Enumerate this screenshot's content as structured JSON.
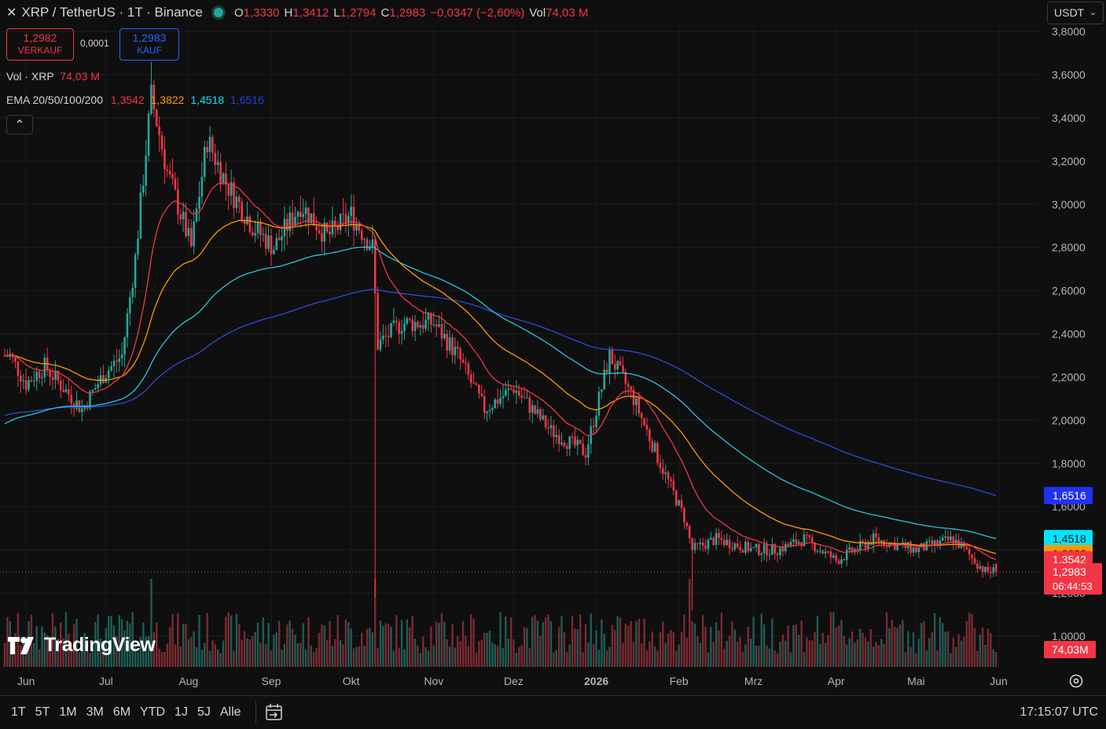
{
  "header": {
    "symbol": "XRP / TetherUS · 1T · Binance",
    "open_label": "O",
    "open": "1,3330",
    "high_label": "H",
    "high": "1,3412",
    "low_label": "L",
    "low": "1,2794",
    "close_label": "C",
    "close": "1,2983",
    "change": "−0,0347 (−2,60%)",
    "vol_label": "Vol",
    "vol": "74,03 M"
  },
  "trade": {
    "sell_price": "1,2982",
    "sell_label": "VERKAUF",
    "spread": "0,0001",
    "buy_price": "1,2983",
    "buy_label": "KAUF"
  },
  "indicators": {
    "vol_title": "Vol · XRP",
    "vol_value": "74,03 M",
    "ema_title": "EMA 20/50/100/200",
    "ema20": "1,3542",
    "ema50": "1,3822",
    "ema100": "1,4518",
    "ema200": "1,6516"
  },
  "currency": "USDT",
  "timeframes": [
    "1T",
    "5T",
    "1M",
    "3M",
    "6M",
    "YTD",
    "1J",
    "5J",
    "Alle"
  ],
  "clock": "17:15:07 UTC",
  "logo_text": "TradingView",
  "icons": [
    "close-icon",
    "status-dot-icon",
    "chevron-up-icon",
    "chevron-down-icon",
    "calendar-goto-icon",
    "settings-icon",
    "tradingview-logo-icon"
  ],
  "colors": {
    "up": "#26a69a",
    "down": "#f23645",
    "ema20": "#f23645",
    "ema50": "#ff9800",
    "ema100": "#26c6da",
    "ema200": "#2962ff",
    "background": "#0f0f0f"
  },
  "chart_data": {
    "type": "candlestick",
    "y_axis_ticks": [
      "1,0000",
      "1,2000",
      "1,4000",
      "1,6000",
      "1,8000",
      "2,0000",
      "2,2000",
      "2,4000",
      "2,6000",
      "2,8000",
      "3,0000",
      "3,2000",
      "3,4000",
      "3,6000",
      "3,8000"
    ],
    "x_axis_ticks": [
      "Jun",
      "Jul",
      "Aug",
      "Sep",
      "Okt",
      "Nov",
      "Dez",
      "2026",
      "Feb",
      "Mrz",
      "Apr",
      "Mai",
      "Jun"
    ],
    "ylim": [
      1.0,
      3.8
    ],
    "price_labels": {
      "ema200": "1,6516",
      "ema100": "1,4518",
      "ema50": "1,3822",
      "ema20": "1,3542",
      "last": "1,2983",
      "countdown": "06:44:53",
      "volume": "74,03M"
    },
    "close_path": [
      {
        "date": "2025-05-26",
        "close": 2.3
      },
      {
        "date": "2025-06-01",
        "close": 2.17
      },
      {
        "date": "2025-06-08",
        "close": 2.25
      },
      {
        "date": "2025-06-15",
        "close": 2.15
      },
      {
        "date": "2025-06-22",
        "close": 2.05
      },
      {
        "date": "2025-06-30",
        "close": 2.21
      },
      {
        "date": "2025-07-07",
        "close": 2.3
      },
      {
        "date": "2025-07-12",
        "close": 2.75
      },
      {
        "date": "2025-07-18",
        "close": 3.5
      },
      {
        "date": "2025-07-24",
        "close": 3.15
      },
      {
        "date": "2025-08-02",
        "close": 2.8
      },
      {
        "date": "2025-08-08",
        "close": 3.3
      },
      {
        "date": "2025-08-15",
        "close": 3.1
      },
      {
        "date": "2025-08-25",
        "close": 2.9
      },
      {
        "date": "2025-09-02",
        "close": 2.8
      },
      {
        "date": "2025-09-12",
        "close": 3.0
      },
      {
        "date": "2025-09-22",
        "close": 2.85
      },
      {
        "date": "2025-10-01",
        "close": 2.95
      },
      {
        "date": "2025-10-09",
        "close": 2.8
      },
      {
        "date": "2025-10-11",
        "close": 2.35
      },
      {
        "date": "2025-10-20",
        "close": 2.45
      },
      {
        "date": "2025-11-01",
        "close": 2.45
      },
      {
        "date": "2025-11-10",
        "close": 2.3
      },
      {
        "date": "2025-11-20",
        "close": 2.05
      },
      {
        "date": "2025-12-01",
        "close": 2.15
      },
      {
        "date": "2025-12-15",
        "close": 1.95
      },
      {
        "date": "2025-12-28",
        "close": 1.85
      },
      {
        "date": "2026-01-06",
        "close": 2.3
      },
      {
        "date": "2026-01-15",
        "close": 2.1
      },
      {
        "date": "2026-01-25",
        "close": 1.8
      },
      {
        "date": "2026-02-03",
        "close": 1.55
      },
      {
        "date": "2026-02-06",
        "close": 1.4
      },
      {
        "date": "2026-02-15",
        "close": 1.45
      },
      {
        "date": "2026-03-01",
        "close": 1.4
      },
      {
        "date": "2026-03-10",
        "close": 1.4
      },
      {
        "date": "2026-03-20",
        "close": 1.45
      },
      {
        "date": "2026-04-01",
        "close": 1.35
      },
      {
        "date": "2026-04-15",
        "close": 1.45
      },
      {
        "date": "2026-05-01",
        "close": 1.4
      },
      {
        "date": "2026-05-15",
        "close": 1.45
      },
      {
        "date": "2026-05-27",
        "close": 1.3
      }
    ],
    "ema_end_values": {
      "ema20": 1.3542,
      "ema50": 1.3822,
      "ema100": 1.4518,
      "ema200": 1.6516
    }
  }
}
